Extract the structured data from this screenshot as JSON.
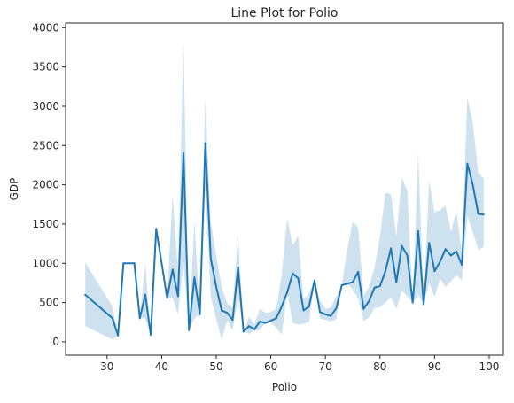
{
  "chart_data": {
    "type": "line",
    "title": "Line Plot for Polio",
    "xlabel": "Polio",
    "ylabel": "GDP",
    "xlim": [
      22.4,
      102.6
    ],
    "ylim": [
      -170,
      4060
    ],
    "xticks": [
      30,
      40,
      50,
      60,
      70,
      80,
      90,
      100
    ],
    "yticks": [
      0,
      500,
      1000,
      1500,
      2000,
      2500,
      3000,
      3500,
      4000
    ],
    "grid": false,
    "legend": "none",
    "colors": {
      "line": "#1f77b4",
      "band": "#1f77b4"
    },
    "series": [
      {
        "x": [
          26,
          31,
          32,
          33,
          35,
          36,
          37,
          38,
          39,
          41,
          42,
          43,
          44,
          45,
          46,
          47,
          48,
          49,
          50,
          51,
          52,
          53,
          54,
          55,
          56,
          57,
          58,
          59,
          60,
          61,
          62,
          63,
          64,
          65,
          66,
          67,
          68,
          69,
          70,
          71,
          72,
          73,
          74,
          75,
          76,
          77,
          78,
          79,
          80,
          81,
          82,
          83,
          84,
          85,
          86,
          87,
          88,
          89,
          90,
          91,
          92,
          93,
          94,
          95,
          96,
          97,
          98,
          99
        ],
        "y": [
          600,
          300,
          80,
          1000,
          1000,
          300,
          600,
          90,
          1440,
          560,
          920,
          580,
          2400,
          150,
          820,
          350,
          2530,
          1060,
          700,
          400,
          370,
          280,
          950,
          130,
          200,
          160,
          260,
          240,
          270,
          300,
          450,
          630,
          870,
          810,
          400,
          450,
          780,
          380,
          350,
          330,
          430,
          720,
          740,
          760,
          890,
          420,
          520,
          690,
          710,
          900,
          1190,
          760,
          1220,
          1100,
          500,
          1410,
          480,
          1260,
          900,
          1020,
          1180,
          1100,
          1150,
          980,
          2270,
          2000,
          1630,
          1620
        ],
        "lower": [
          200,
          30,
          80,
          1000,
          1000,
          300,
          300,
          90,
          1440,
          560,
          560,
          350,
          1000,
          150,
          300,
          350,
          1950,
          580,
          290,
          30,
          270,
          150,
          560,
          130,
          100,
          140,
          150,
          240,
          250,
          180,
          90,
          630,
          240,
          220,
          230,
          250,
          780,
          300,
          280,
          260,
          290,
          720,
          740,
          660,
          550,
          270,
          310,
          430,
          440,
          500,
          570,
          420,
          650,
          580,
          500,
          600,
          480,
          750,
          570,
          800,
          700,
          770,
          850,
          780,
          1600,
          1400,
          1170,
          1210
        ],
        "upper": [
          1010,
          450,
          80,
          1000,
          1000,
          300,
          1000,
          90,
          1440,
          560,
          1870,
          900,
          3830,
          150,
          1530,
          350,
          3100,
          1520,
          1100,
          700,
          490,
          430,
          1360,
          130,
          320,
          220,
          420,
          370,
          380,
          420,
          860,
          1570,
          1230,
          1350,
          540,
          620,
          780,
          530,
          420,
          440,
          580,
          720,
          1180,
          1530,
          1460,
          590,
          700,
          950,
          1340,
          1900,
          1880,
          1350,
          2090,
          1930,
          500,
          2410,
          480,
          2050,
          1650,
          1680,
          1730,
          1400,
          1670,
          1120,
          3110,
          2790,
          2150,
          2080
        ]
      }
    ]
  }
}
